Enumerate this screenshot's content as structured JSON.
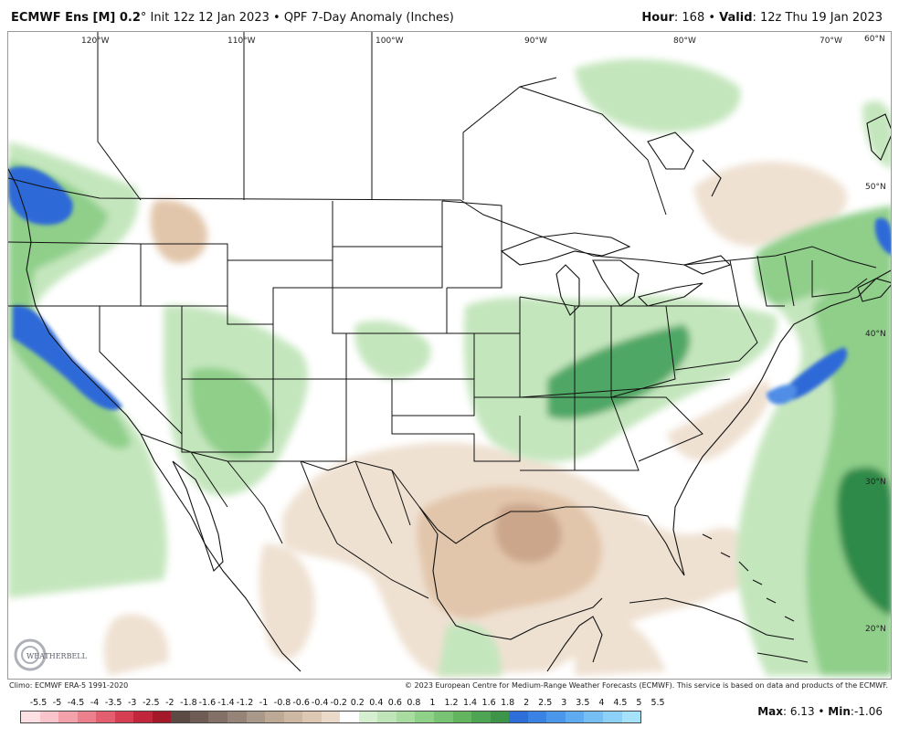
{
  "header": {
    "model": "ECMWF Ens [M] 0.2",
    "degree": "°",
    "init": "Init 12z 12 Jan 2023",
    "product": "QPF 7-Day Anomaly (Inches)",
    "hour_label": "Hour",
    "hour_value": ": 168",
    "valid_label": "Valid",
    "valid_value": ": 12z Thu 19 Jan 2023"
  },
  "map": {
    "lon_labels": [
      "120°W",
      "110°W",
      "100°W",
      "90°W",
      "80°W",
      "70°W",
      "60°N"
    ],
    "lat_labels": [
      "50°N",
      "40°N",
      "30°N",
      "20°N"
    ],
    "logo_text": "WEATHERBELL",
    "colors": {
      "dry_light": "#efe1d2",
      "dry_mid": "#e2c6ab",
      "dry_strong": "#cba68b",
      "wet_light": "#c4e6bd",
      "wet_mid": "#8fcf8a",
      "wet_strong": "#4fa765",
      "wet_deep": "#2d8a4a",
      "very_wet": "#2f69d8",
      "very_wet_light": "#4f8de6"
    }
  },
  "credits": {
    "climo": "Climo: ECMWF ERA-5 1991-2020",
    "copyright": "© 2023 European Centre for Medium-Range Weather Forecasts (ECMWF). This service is based on data and products of the ECMWF."
  },
  "legend": {
    "ticks": [
      "-5.5",
      "-5",
      "-4.5",
      "-4",
      "-3.5",
      "-3",
      "-2.5",
      "-2",
      "-1.8",
      "-1.6",
      "-1.4",
      "-1.2",
      "-1",
      "-0.8",
      "-0.6",
      "-0.4",
      "-0.2",
      "0.2",
      "0.4",
      "0.6",
      "0.8",
      "1",
      "1.2",
      "1.4",
      "1.6",
      "1.8",
      "2",
      "2.5",
      "3",
      "3.5",
      "4",
      "4.5",
      "5",
      "5.5"
    ],
    "colors": [
      "#fde0e4",
      "#f9c4cb",
      "#f3a2ac",
      "#ec808d",
      "#e35f6f",
      "#d63f52",
      "#c2263a",
      "#a3192a",
      "#5c4a44",
      "#6f5d55",
      "#837066",
      "#968478",
      "#a9998b",
      "#bcaa97",
      "#cdb8a3",
      "#ddc8b3",
      "#ebdaca",
      "#ffffff",
      "#d5efd0",
      "#bfe5b8",
      "#a8dca0",
      "#90d189",
      "#79c474",
      "#63b55f",
      "#4ea553",
      "#3e9448",
      "#2d6ed8",
      "#3a82e4",
      "#4b97ec",
      "#5fabf1",
      "#76bff5",
      "#8dd1f8",
      "#a6e2fa"
    ],
    "max_label": "Max",
    "max_value": ": 6.13",
    "min_label": "Min",
    "min_value": ":-1.06",
    "sep": " • "
  }
}
